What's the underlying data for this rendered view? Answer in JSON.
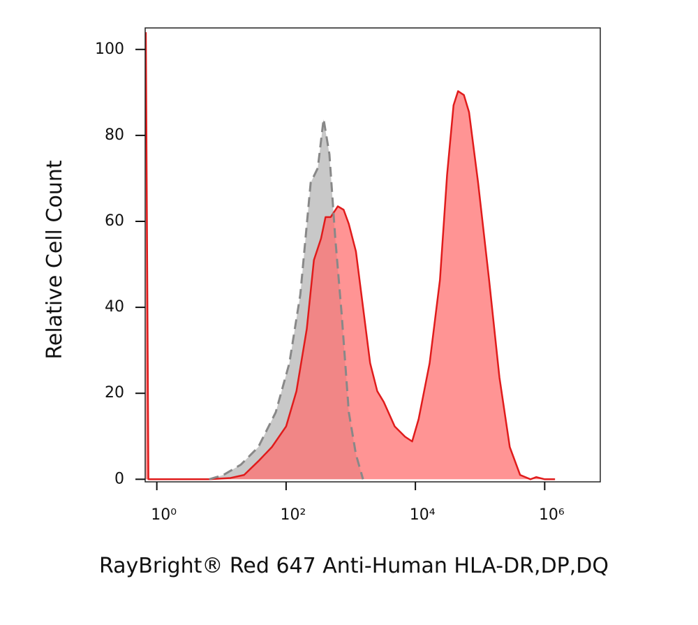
{
  "chart_data": {
    "type": "histogram-overlay",
    "x_label": "RayBright® Red 647 Anti-Human HLA-DR,DP,DQ",
    "y_label": "Relative Cell Count",
    "xlim": [
      -0.18,
      6.86
    ],
    "ylim": [
      -0.6,
      105
    ],
    "xticks": [
      {
        "value": 0,
        "label": "10⁰"
      },
      {
        "value": 2,
        "label": "10²"
      },
      {
        "value": 4,
        "label": "10⁴"
      },
      {
        "value": 6,
        "label": "10⁶"
      }
    ],
    "yticks": [
      0,
      20,
      40,
      60,
      80,
      100
    ],
    "series": [
      {
        "color": "#888888",
        "fill": "#c8c8c8",
        "dashed": true,
        "x": [
          0.81,
          1.03,
          1.3,
          1.57,
          1.84,
          2.05,
          2.22,
          2.38,
          2.49,
          2.58,
          2.67,
          2.76,
          2.86,
          2.97,
          3.08,
          3.19
        ],
        "values": [
          0,
          1,
          3.4,
          7.5,
          15.6,
          27,
          43,
          69,
          72.4,
          83.8,
          75.6,
          56.2,
          38.3,
          15.6,
          5.8,
          0
        ]
      },
      {
        "color": "#e01b1b",
        "fill": "#ff7070",
        "dashed": false,
        "x": [
          -0.17,
          -0.13,
          0.81,
          1.14,
          1.35,
          1.57,
          1.78,
          2.0,
          2.16,
          2.32,
          2.43,
          2.54,
          2.61,
          2.69,
          2.8,
          2.89,
          2.97,
          3.08,
          3.19,
          3.3,
          3.41,
          3.51,
          3.68,
          3.84,
          3.95,
          4.05,
          4.22,
          4.38,
          4.49,
          4.59,
          4.66,
          4.75,
          4.83,
          4.97,
          5.14,
          5.3,
          5.46,
          5.62,
          5.78,
          5.87,
          6.0,
          6.16
        ],
        "values": [
          104,
          0,
          0,
          0.3,
          1,
          4.2,
          7.5,
          12.3,
          20.5,
          35,
          51,
          56,
          61,
          61,
          63.5,
          62.7,
          59.4,
          53,
          40,
          27,
          20.5,
          18,
          12.3,
          9.9,
          8.8,
          14,
          27,
          46.4,
          70.8,
          87,
          90.3,
          89.4,
          85.4,
          69,
          46.4,
          23.7,
          7.5,
          1,
          0,
          0.5,
          0,
          0
        ]
      }
    ]
  }
}
